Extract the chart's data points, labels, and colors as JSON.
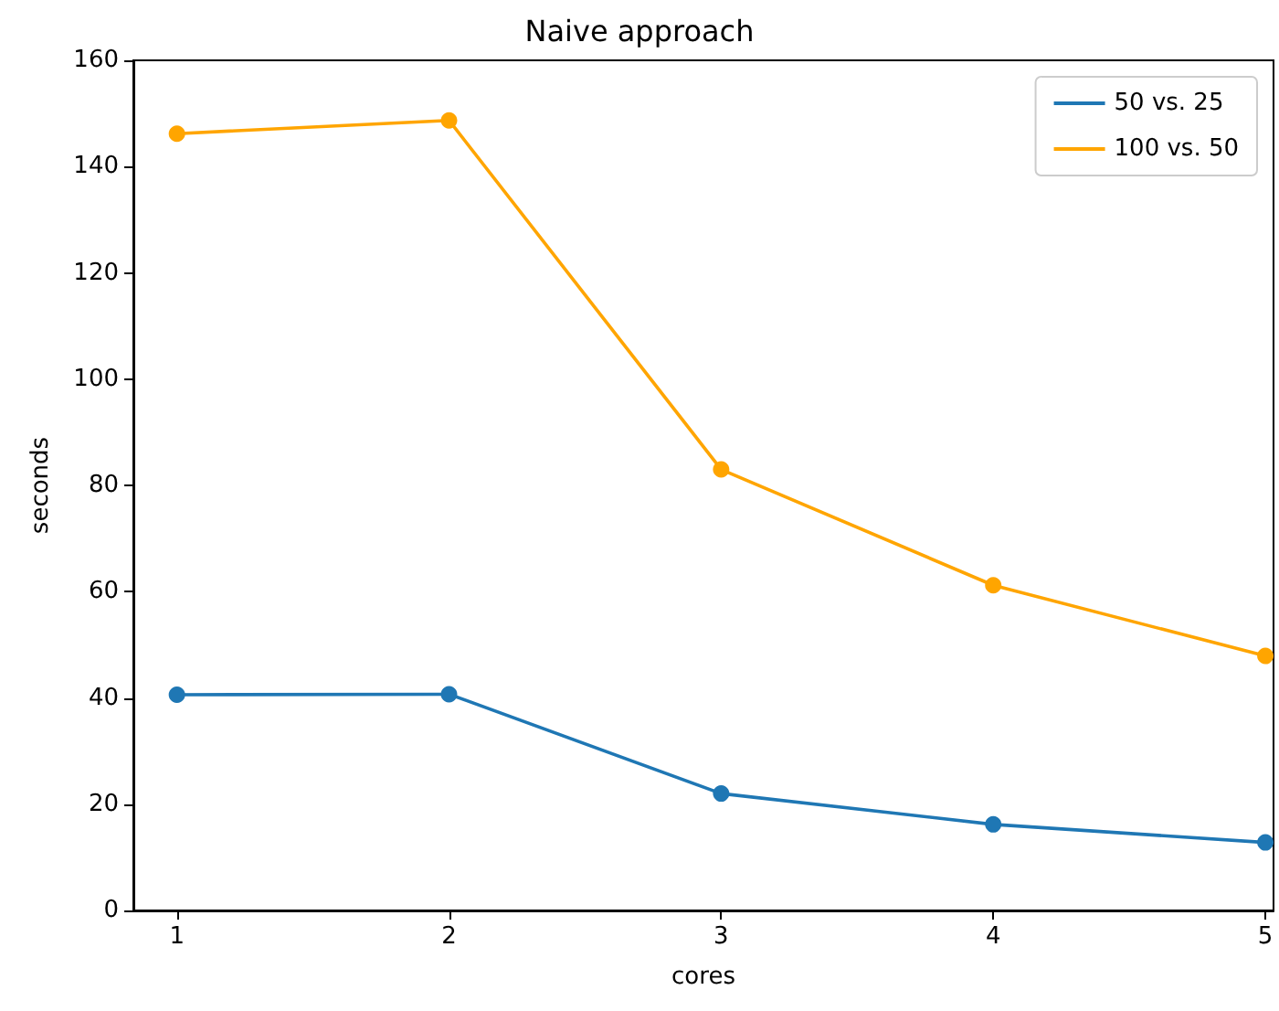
{
  "chart_data": {
    "type": "line",
    "title": "Naive approach",
    "xlabel": "cores",
    "ylabel": "seconds",
    "x": [
      1,
      2,
      3,
      4,
      5
    ],
    "series": [
      {
        "name": "50 vs. 25",
        "color": "#1f77b4",
        "values": [
          40.6,
          40.7,
          22.0,
          16.2,
          12.8
        ]
      },
      {
        "name": "100 vs. 50",
        "color": "#ffa500",
        "values": [
          146.2,
          148.7,
          83.0,
          61.2,
          47.9
        ]
      }
    ],
    "xlim": [
      0.84,
      5.03
    ],
    "xticks": [
      1,
      2,
      3,
      4,
      5
    ],
    "ylim": [
      0,
      160
    ],
    "yticks": [
      0,
      20,
      40,
      60,
      80,
      100,
      120,
      140,
      160
    ],
    "grid": false,
    "legend": "top right",
    "marker": "circle",
    "line_style": "solid"
  }
}
